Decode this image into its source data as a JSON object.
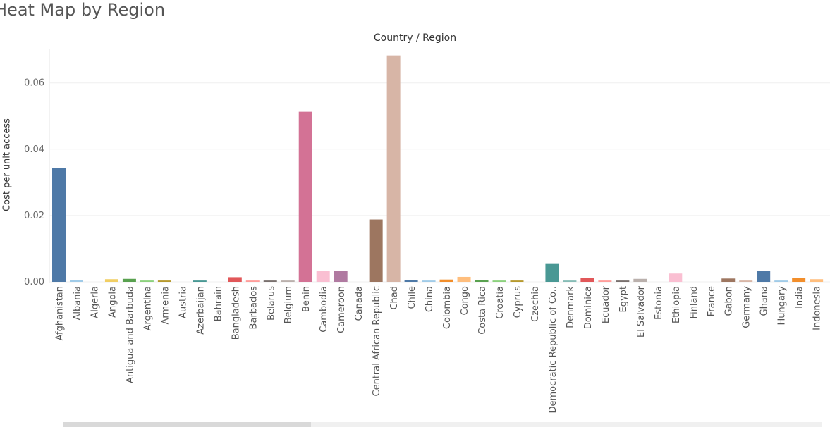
{
  "title": "Heat Map by Region",
  "chart_data": {
    "type": "bar",
    "title": "Heat Map by Region",
    "xlabel": "Country / Region",
    "ylabel": "Cost per unit access",
    "ylim": [
      -0.0025,
      0.07
    ],
    "yticks": [
      "0.00",
      "0.02",
      "0.04",
      "0.06"
    ],
    "grid": true,
    "categories": [
      "Afghanistan",
      "Albania",
      "Algeria",
      "Angola",
      "Antigua and Barbuda",
      "Argentina",
      "Armenia",
      "Austria",
      "Azerbaijan",
      "Bahrain",
      "Bangladesh",
      "Barbados",
      "Belarus",
      "Belgium",
      "Benin",
      "Cambodia",
      "Cameroon",
      "Canada",
      "Central African Republic",
      "Chad",
      "Chile",
      "China",
      "Colombia",
      "Congo",
      "Costa Rica",
      "Croatia",
      "Cyprus",
      "Czechia",
      "Democratic Republic of Co..",
      "Denmark",
      "Dominica",
      "Ecuador",
      "Egypt",
      "El Salvador",
      "Estonia",
      "Ethiopia",
      "Finland",
      "France",
      "Gabon",
      "Germany",
      "Ghana",
      "Hungary",
      "India",
      "Indonesia"
    ],
    "values": [
      0.0344,
      0.0005,
      0.0,
      0.0008,
      0.0009,
      0.0004,
      0.0004,
      0.0,
      0.0004,
      0.0,
      0.0014,
      0.0004,
      0.0004,
      0.0004,
      0.0513,
      0.0032,
      0.0032,
      0.0,
      0.0188,
      0.0683,
      0.0005,
      0.0004,
      0.0007,
      0.0015,
      0.0006,
      0.0004,
      0.0004,
      0.0,
      0.0056,
      0.0004,
      0.0012,
      0.0004,
      0.0004,
      0.0009,
      0.0,
      0.0025,
      0.0,
      0.0,
      0.001,
      0.0004,
      0.0032,
      0.0004,
      0.0012,
      0.0008
    ],
    "colors": [
      "#4e79a7",
      "#a0cbe8",
      "#a0cbe8",
      "#f1ce63",
      "#59a14f",
      "#8cd17d",
      "#b6992d",
      "#f1ce63",
      "#499894",
      "#86bcb6",
      "#e15759",
      "#ff9d9a",
      "#79706e",
      "#bab0ac",
      "#d37295",
      "#fabfd2",
      "#b07aa1",
      "#d4a6c8",
      "#9d7660",
      "#d7b5a6",
      "#4e79a7",
      "#a0cbe8",
      "#f28e2b",
      "#ffbe7d",
      "#59a14f",
      "#8cd17d",
      "#b6992d",
      "#f1ce63",
      "#499894",
      "#86bcb6",
      "#e15759",
      "#ff9d9a",
      "#79706e",
      "#bab0ac",
      "#d37295",
      "#fabfd2",
      "#b07aa1",
      "#d4a6c8",
      "#9d7660",
      "#d7b5a6",
      "#4e79a7",
      "#a0cbe8",
      "#f28e2b",
      "#ffbe7d"
    ]
  }
}
